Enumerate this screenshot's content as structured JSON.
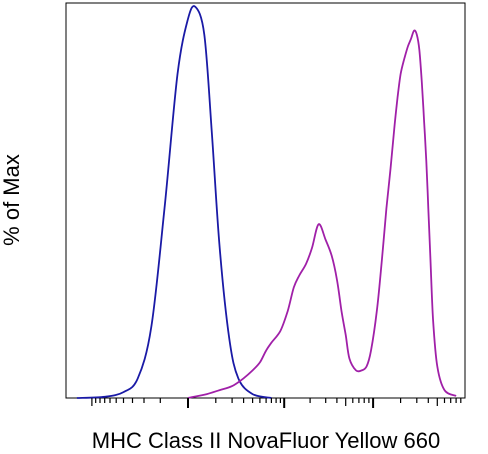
{
  "chart_data": {
    "type": "line",
    "title": "",
    "xlabel": "MHC Class II NovaFluor Yellow 660",
    "ylabel": "% of Max",
    "x_scale": "log",
    "xlim": [
      -2000,
      100000
    ],
    "ylim": [
      0,
      100
    ],
    "xtick_labels": [],
    "ytick_labels": [],
    "grid": false,
    "legend": "none",
    "series": [
      {
        "color": "#1a1aa6",
        "x": [
          -1500,
          -700,
          -400,
          -250,
          -150,
          -80,
          -30,
          0,
          20,
          50,
          80,
          120,
          180,
          250,
          400,
          700
        ],
        "y": [
          0,
          0.3,
          1.5,
          5,
          18,
          48,
          82,
          96,
          99,
          92,
          68,
          38,
          15,
          5,
          1,
          0
        ]
      },
      {
        "color": "#a020a8",
        "x": [
          0,
          60,
          120,
          200,
          300,
          400,
          500,
          600,
          700,
          900,
          1100,
          1300,
          1500,
          1800,
          2100,
          2500,
          3000,
          3500,
          4000,
          4500,
          5000,
          5500,
          6500,
          7500,
          8500,
          9500,
          11000,
          12500,
          14000,
          15500,
          17000,
          18500,
          20000,
          22000,
          24000,
          26000,
          28000,
          30000,
          32000,
          34000,
          36000,
          38000,
          40000,
          42000,
          45000,
          50000,
          60000,
          80000
        ],
        "y": [
          0,
          1,
          2,
          3,
          5,
          7,
          9,
          12,
          14,
          17,
          22,
          28,
          31,
          34,
          38,
          44,
          40,
          36,
          30,
          22,
          16,
          10,
          7,
          7,
          8,
          12,
          22,
          35,
          48,
          58,
          68,
          76,
          82,
          86,
          89,
          91,
          93,
          92,
          88,
          80,
          70,
          60,
          48,
          36,
          20,
          8,
          2,
          0.5
        ]
      }
    ]
  }
}
